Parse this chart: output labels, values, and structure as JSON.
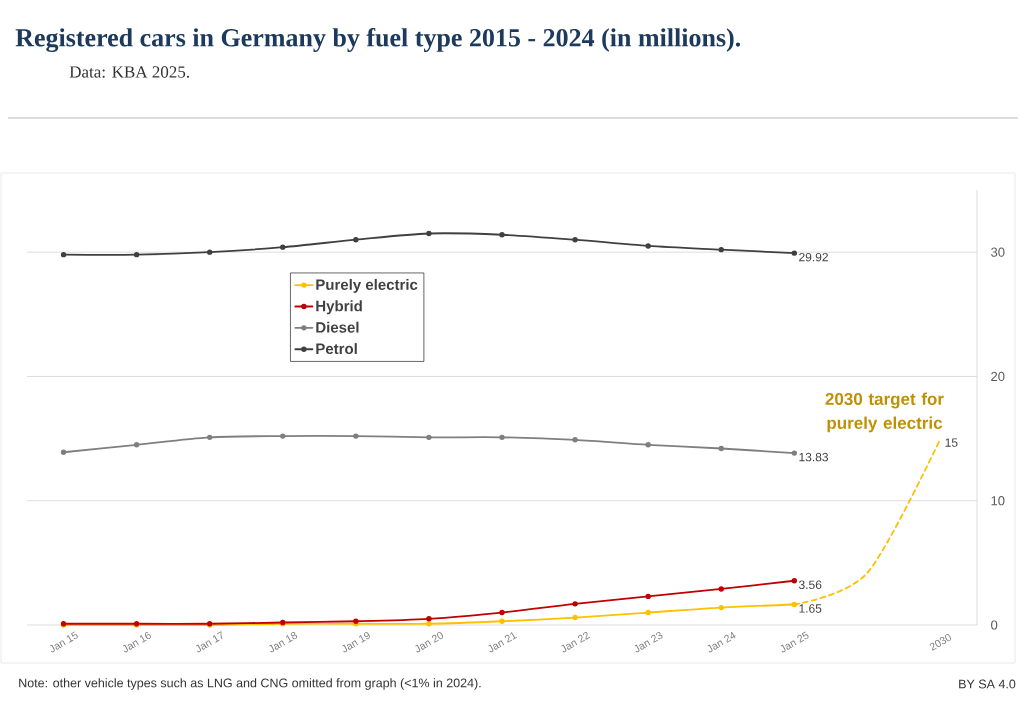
{
  "chart_data": {
    "type": "line",
    "title": "Registered cars in Germany by fuel type 2015 - 2024 (in millions).",
    "subtitle": "Data: KBA 2025.",
    "categories": [
      "Jan 15",
      "Jan 16",
      "Jan 17",
      "Jan 18",
      "Jan 19",
      "Jan 20",
      "Jan 21",
      "Jan 22",
      "Jan 23",
      "Jan 24",
      "Jan 25",
      null,
      "2030"
    ],
    "series": [
      {
        "name": "Purely electric",
        "color": "#ffc000",
        "values": [
          0.0,
          0.0,
          0.0,
          0.1,
          0.1,
          0.1,
          0.3,
          0.6,
          1.0,
          1.4,
          1.65,
          null,
          null
        ],
        "value_labels": [
          null,
          null,
          null,
          null,
          null,
          null,
          null,
          null,
          null,
          null,
          "1.65",
          null,
          null
        ]
      },
      {
        "name": "Hybrid",
        "color": "#c00000",
        "values": [
          0.1,
          0.1,
          0.1,
          0.2,
          0.3,
          0.5,
          1.0,
          1.7,
          2.3,
          2.9,
          3.56,
          null,
          null
        ],
        "value_labels": [
          null,
          null,
          null,
          null,
          null,
          null,
          null,
          null,
          null,
          null,
          "3.56",
          null,
          null
        ]
      },
      {
        "name": "Diesel",
        "color": "#7f7f7f",
        "values": [
          13.9,
          14.5,
          15.1,
          15.2,
          15.2,
          15.1,
          15.1,
          14.9,
          14.5,
          14.2,
          13.83,
          null,
          null
        ],
        "value_labels": [
          null,
          null,
          null,
          null,
          null,
          null,
          null,
          null,
          null,
          null,
          "13.83",
          null,
          null
        ]
      },
      {
        "name": "Petrol",
        "color": "#404040",
        "values": [
          29.8,
          29.8,
          30.0,
          30.4,
          31.0,
          31.5,
          31.4,
          31.0,
          30.5,
          30.2,
          29.92,
          null,
          null
        ],
        "value_labels": [
          null,
          null,
          null,
          null,
          null,
          null,
          null,
          null,
          null,
          null,
          "29.92",
          null,
          null
        ]
      },
      {
        "color": "#ffc000",
        "values": [
          null,
          null,
          null,
          null,
          null,
          null,
          null,
          null,
          null,
          null,
          1.65,
          4.2,
          15
        ],
        "value_labels": [
          null,
          null,
          null,
          null,
          null,
          null,
          null,
          null,
          null,
          null,
          null,
          null,
          "15"
        ],
        "line_style": "dashed",
        "marker": "none"
      }
    ],
    "ylim": [
      0,
      35
    ],
    "yticks": [
      0,
      10,
      20,
      30
    ],
    "grid": "y",
    "legend": "top left",
    "marker": "circle",
    "line_style": "solid",
    "annotations": [
      {
        "text": "2030 target for purely electric",
        "x": "2030",
        "y": 15
      },
      "Note: other vehicle types such as LNG and CNG omitted from graph (<1% in 2024).",
      "BY SA 4.0"
    ]
  }
}
